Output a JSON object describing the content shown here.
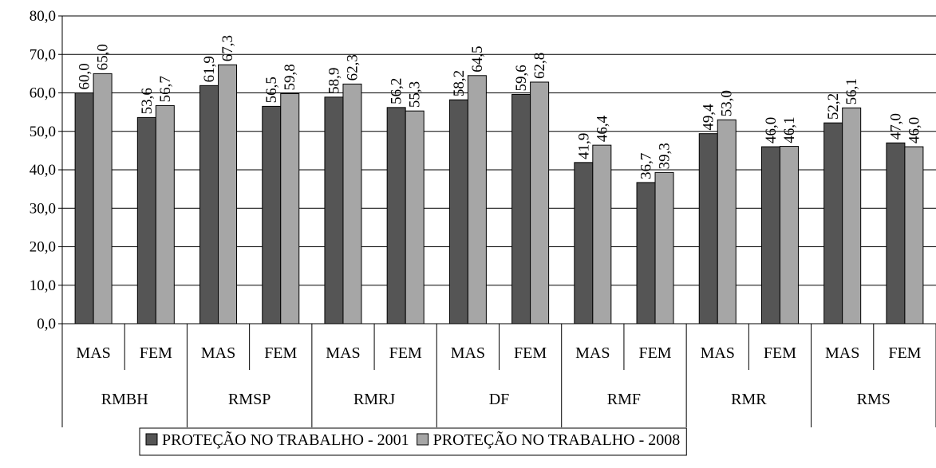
{
  "chart_data": {
    "type": "bar",
    "groups": [
      "RMBH",
      "RMSP",
      "RMRJ",
      "DF",
      "RMF",
      "RMR",
      "RMS"
    ],
    "subcategories": [
      "MAS",
      "FEM"
    ],
    "categories": [
      "MAS",
      "FEM",
      "MAS",
      "FEM",
      "MAS",
      "FEM",
      "MAS",
      "FEM",
      "MAS",
      "FEM",
      "MAS",
      "FEM",
      "MAS",
      "FEM"
    ],
    "series": [
      {
        "name": "PROTEÇÃO NO TRABALHO - 2001",
        "color": "#555555",
        "values": [
          60.0,
          53.6,
          61.9,
          56.5,
          58.9,
          56.2,
          58.2,
          59.6,
          41.9,
          36.7,
          49.4,
          46.0,
          52.2,
          47.0
        ],
        "labels": [
          "60,0",
          "53,6",
          "61,9",
          "56,5",
          "58,9",
          "56,2",
          "58,2",
          "59,6",
          "41,9",
          "36,7",
          "49,4",
          "46,0",
          "52,2",
          "47,0"
        ]
      },
      {
        "name": "PROTEÇÃO NO TRABALHO - 2008",
        "color": "#a6a6a6",
        "values": [
          65.0,
          56.7,
          67.3,
          59.8,
          62.3,
          55.3,
          64.5,
          62.8,
          46.4,
          39.3,
          53.0,
          46.1,
          56.1,
          46.0
        ],
        "labels": [
          "65,0",
          "56,7",
          "67,3",
          "59,8",
          "62,3",
          "55,3",
          "64,5",
          "62,8",
          "46,4",
          "39,3",
          "53,0",
          "46,1",
          "56,1",
          "46,0"
        ]
      }
    ],
    "ylim": [
      0,
      80
    ],
    "yticks": [
      0,
      10,
      20,
      30,
      40,
      50,
      60,
      70,
      80
    ],
    "ytick_labels": [
      "0,0",
      "10,0",
      "20,0",
      "30,0",
      "40,0",
      "50,0",
      "60,0",
      "70,0",
      "80,0"
    ],
    "grid": true,
    "legend_position": "bottom-center"
  }
}
